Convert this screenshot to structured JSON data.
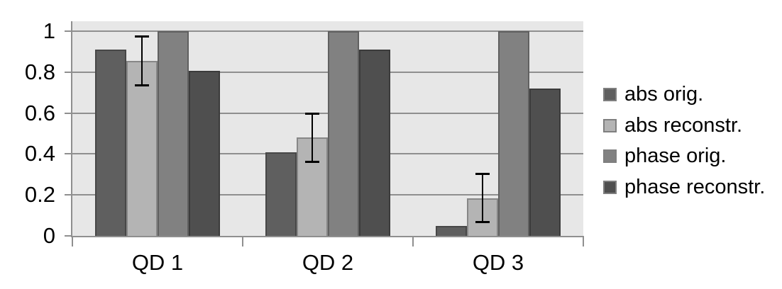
{
  "chart_data": {
    "type": "bar",
    "title": "",
    "categories": [
      "QD 1",
      "QD 2",
      "QD 3"
    ],
    "series": [
      {
        "name": "abs orig.",
        "color": "#5f5f5f",
        "values": [
          0.91,
          0.41,
          0.05
        ]
      },
      {
        "name": "abs reconstr.",
        "color": "#b4b4b4",
        "values": [
          0.855,
          0.48,
          0.185
        ],
        "error_bar_plus_minus": 0.12
      },
      {
        "name": "phase orig.",
        "color": "#818181",
        "values": [
          1.0,
          1.0,
          1.0
        ]
      },
      {
        "name": "phase reconstr.",
        "color": "#4f4f4f",
        "values": [
          0.805,
          0.91,
          0.72
        ]
      }
    ],
    "xlabel": "",
    "ylabel": "",
    "ylim": [
      0,
      1.05
    ],
    "y_ticks": [
      0,
      0.2,
      0.4,
      0.6,
      0.8,
      1
    ],
    "y_tick_labels": [
      "0",
      "0.2",
      "0.4",
      "0.6",
      "0.8",
      "1"
    ],
    "grid": true,
    "legend_position": "right",
    "colors": {
      "page_background": "#ffffff",
      "plot_background": "#e7e7e7",
      "gridline": "#8f8f8f",
      "axis": "#8f8f8f",
      "error_bar": "#000000",
      "text": "#000000"
    }
  }
}
